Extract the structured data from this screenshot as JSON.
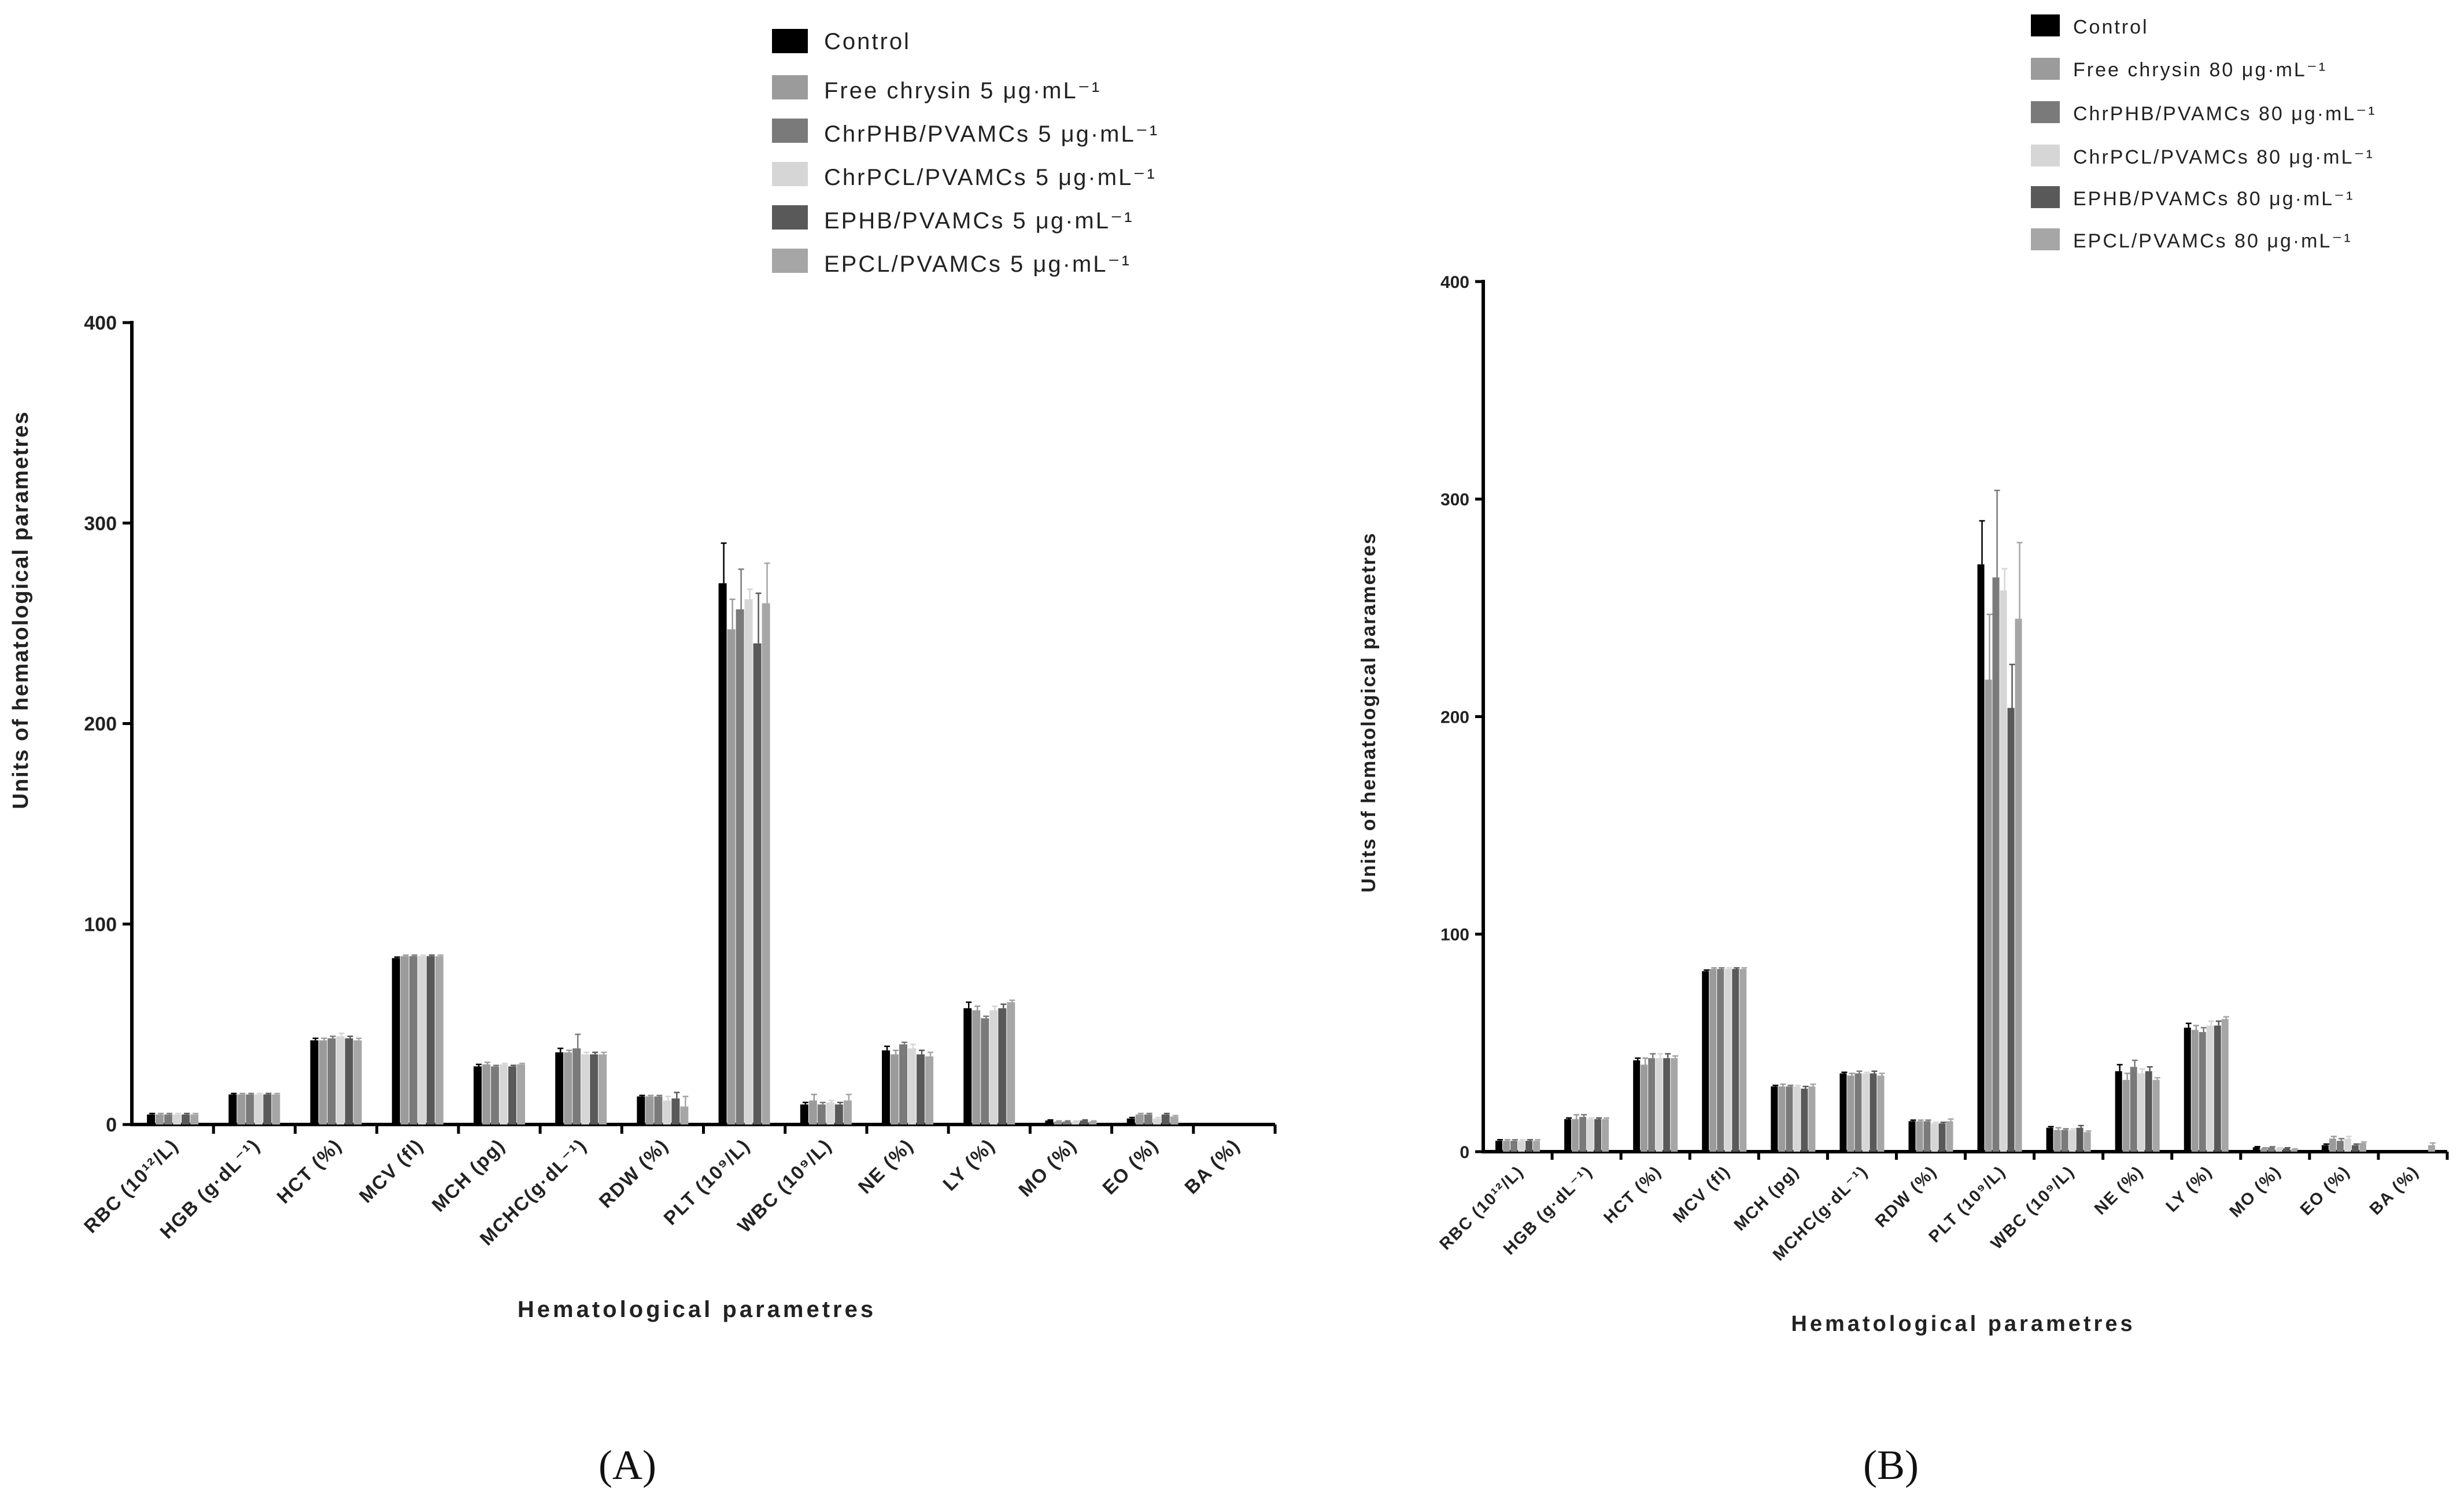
{
  "colors": {
    "series": [
      "#000000",
      "#9b9b9b",
      "#7a7a7a",
      "#d6d6d6",
      "#595959",
      "#a6a6a6"
    ],
    "axis": "#000000"
  },
  "chart_data": [
    {
      "type": "bar",
      "panel_label": "(A)",
      "title": "",
      "xlabel": "Hematological parametres",
      "ylabel": "Units of hematological parametres",
      "ylim": [
        0,
        400
      ],
      "yticks": [
        "0",
        "100",
        "200",
        "300",
        "400"
      ],
      "categories": [
        "RBC (10¹²/L)",
        "HGB (g·dL⁻¹)",
        "HCT (%)",
        "MCV (fl)",
        "MCH (pg)",
        "MCHC(g·dL⁻¹)",
        "RDW (%)",
        "PLT (10⁹/L)",
        "WBC (10⁹/L)",
        "NE (%)",
        "LY (%)",
        "MO (%)",
        "EO (%)",
        "BA (%)"
      ],
      "legend": [
        "Control",
        "Free chrysin 5 μg·mL⁻¹",
        "ChrPHB/PVAMCs 5 μg·mL⁻¹",
        "ChrPCL/PVAMCs 5 μg·mL⁻¹",
        "EPHB/PVAMCs 5 μg·mL⁻¹",
        "EPCL/PVAMCs 5 μg·mL⁻¹"
      ],
      "series": [
        {
          "name": "Control",
          "values": [
            5,
            15,
            42,
            83,
            29,
            36,
            14,
            270,
            10,
            37,
            58,
            2,
            3,
            0
          ],
          "errors": [
            0.5,
            0.5,
            1,
            0.5,
            1,
            2,
            0.5,
            20,
            1,
            2,
            3,
            0.3,
            0.5,
            0
          ]
        },
        {
          "name": "Free chrysin 5 μg·mL⁻¹",
          "values": [
            5,
            15,
            42,
            84,
            30,
            36,
            14,
            247,
            12,
            35,
            57,
            1.5,
            5,
            0
          ],
          "errors": [
            0.5,
            0.5,
            1,
            0.5,
            1,
            1,
            0.5,
            15,
            3,
            2,
            2,
            0.3,
            0.5,
            0
          ]
        },
        {
          "name": "ChrPHB/PVAMCs 5 μg·mL⁻¹",
          "values": [
            5,
            15,
            43,
            84,
            29,
            38,
            14,
            257,
            10,
            40,
            53,
            1.5,
            5,
            0
          ],
          "errors": [
            0.5,
            0.5,
            1,
            0.5,
            0.5,
            7,
            0.5,
            20,
            1,
            1,
            1,
            0.3,
            0.5,
            0
          ]
        },
        {
          "name": "ChrPCL/PVAMCs 5 μg·mL⁻¹",
          "values": [
            5,
            15,
            44,
            84,
            30,
            35,
            12,
            262,
            11,
            38,
            57,
            1.5,
            3,
            0
          ],
          "errors": [
            0.5,
            0.5,
            1.5,
            0.5,
            0.5,
            1,
            2,
            5,
            1,
            2,
            2,
            0.3,
            0.5,
            0
          ]
        },
        {
          "name": "EPHB/PVAMCs 5 μg·mL⁻¹",
          "values": [
            5,
            15,
            43,
            84,
            29,
            35,
            13,
            240,
            10,
            35,
            58,
            2,
            5,
            0
          ],
          "errors": [
            0.5,
            0.5,
            1,
            0.5,
            0.5,
            1,
            3,
            25,
            1,
            2,
            2,
            0.3,
            0.5,
            0
          ]
        },
        {
          "name": "EPCL/PVAMCs 5 μg·mL⁻¹",
          "values": [
            5,
            15,
            42,
            84,
            30,
            35,
            9,
            260,
            12,
            34,
            61,
            1.5,
            4,
            0
          ],
          "errors": [
            0.5,
            0.5,
            1,
            0.5,
            0.5,
            1,
            5,
            20,
            3,
            2,
            1,
            0.3,
            0.5,
            0
          ]
        }
      ]
    },
    {
      "type": "bar",
      "panel_label": "(B)",
      "title": "",
      "xlabel": "Hematological parametres",
      "ylabel": "Units of hematological parametres",
      "ylim": [
        0,
        400
      ],
      "yticks": [
        "0",
        "100",
        "200",
        "300",
        "400"
      ],
      "categories": [
        "RBC (10¹²/L)",
        "HGB (g·dL⁻¹)",
        "HCT (%)",
        "MCV (fl)",
        "MCH (pg)",
        "MCHC(g·dL⁻¹)",
        "RDW (%)",
        "PLT (10⁹/L)",
        "WBC (10⁹/L)",
        "NE (%)",
        "LY (%)",
        "MO (%)",
        "EO (%)",
        "BA (%)"
      ],
      "legend": [
        "Control",
        "Free chrysin 80 μg·mL⁻¹",
        "ChrPHB/PVAMCs 80 μg·mL⁻¹",
        "ChrPCL/PVAMCs 80 μg·mL⁻¹",
        "EPHB/PVAMCs 80 μg·mL⁻¹",
        "EPCL/PVAMCs 80 μg·mL⁻¹"
      ],
      "series": [
        {
          "name": "Control",
          "values": [
            5,
            15,
            42,
            83,
            30,
            36,
            14,
            270,
            11,
            37,
            57,
            2,
            3,
            0
          ],
          "errors": [
            0.5,
            0.5,
            1,
            0.5,
            0.5,
            0.5,
            0.5,
            20,
            0.5,
            3,
            2,
            0.3,
            0.5,
            0
          ]
        },
        {
          "name": "Free chrysin 80 μg·mL⁻¹",
          "values": [
            5,
            15,
            40,
            84,
            30,
            35,
            14,
            217,
            10,
            33,
            56,
            1.5,
            6,
            0
          ],
          "errors": [
            0.5,
            2,
            3,
            0.5,
            1,
            1,
            0.5,
            30,
            1,
            3,
            2,
            0.3,
            1,
            0
          ]
        },
        {
          "name": "ChrPHB/PVAMCs 80 μg·mL⁻¹",
          "values": [
            5,
            16,
            43,
            84,
            30,
            36,
            14,
            264,
            10,
            39,
            55,
            2,
            5,
            0
          ],
          "errors": [
            0.5,
            1,
            2,
            0.5,
            0.5,
            1,
            0.5,
            40,
            0.5,
            3,
            2,
            0.3,
            1,
            0
          ]
        },
        {
          "name": "ChrPCL/PVAMCs 80 μg·mL⁻¹",
          "values": [
            5,
            15,
            43,
            84,
            30,
            36,
            13,
            258,
            10,
            36,
            58,
            1.5,
            6,
            0
          ],
          "errors": [
            0.5,
            0.5,
            2,
            0.5,
            0.5,
            0.5,
            0.5,
            10,
            0.5,
            2,
            2,
            0.3,
            1,
            0
          ]
        },
        {
          "name": "EPHB/PVAMCs 80 μg·mL⁻¹",
          "values": [
            5,
            15,
            43,
            84,
            29,
            36,
            13,
            204,
            11,
            37,
            58,
            1.5,
            3,
            0
          ],
          "errors": [
            0.5,
            0.5,
            2,
            0.5,
            1,
            1,
            0.5,
            20,
            1,
            2,
            2,
            0.3,
            0.5,
            0
          ]
        },
        {
          "name": "EPCL/PVAMCs 80 μg·mL⁻¹",
          "values": [
            5,
            15,
            43,
            84,
            30,
            35,
            14,
            245,
            9,
            33,
            61,
            1,
            4,
            3
          ],
          "errors": [
            0.5,
            0.5,
            1,
            0.5,
            1,
            1,
            1,
            35,
            0.5,
            1,
            1,
            0.3,
            0.5,
            1
          ]
        }
      ]
    }
  ]
}
